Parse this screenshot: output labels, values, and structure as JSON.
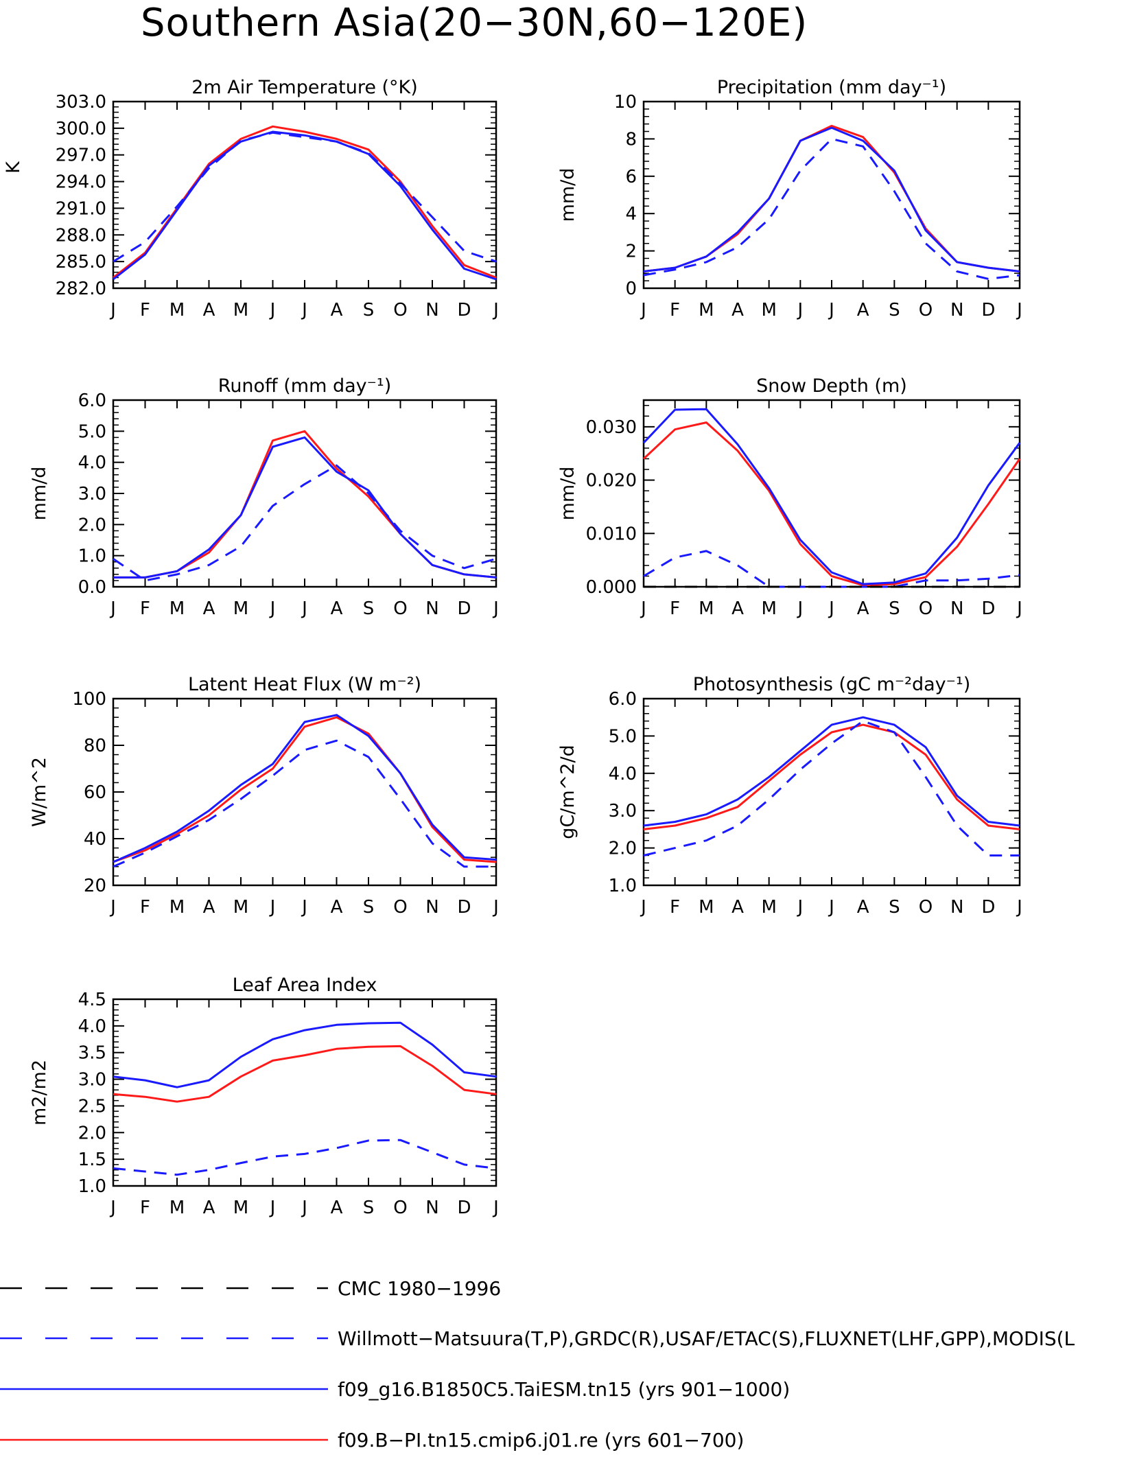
{
  "title": "Southern Asia(20−30N,60−120E)",
  "months": [
    "J",
    "F",
    "M",
    "A",
    "M",
    "J",
    "J",
    "A",
    "S",
    "O",
    "N",
    "D",
    "J"
  ],
  "colors": {
    "obs_cmc": "#000000",
    "obs": "#1a1aff",
    "taiesm": "#1a1aff",
    "cmip6": "#ff1a1a"
  },
  "legend": [
    {
      "label": "CMC 1980−1996",
      "color": "#000000",
      "style": "dashed"
    },
    {
      "label": "Willmott−Matsuura(T,P),GRDC(R),USAF/ETAC(S),FLUXNET(LHF,GPP),MODIS(L",
      "color": "#1a1aff",
      "style": "dashed"
    },
    {
      "label": "f09_g16.B1850C5.TaiESM.tn15 (yrs 901−1000)",
      "color": "#1a1aff",
      "style": "solid"
    },
    {
      "label": "f09.B−PI.tn15.cmip6.j01.re (yrs 601−700)",
      "color": "#ff1a1a",
      "style": "solid"
    }
  ],
  "chart_data": [
    {
      "type": "line",
      "title": "2m Air Temperature (°K)",
      "ylabel": "K",
      "ylim": [
        282.0,
        303.0
      ],
      "yticks": [
        "282.0",
        "285.0",
        "288.0",
        "291.0",
        "294.0",
        "297.0",
        "300.0",
        "303.0"
      ],
      "series": [
        {
          "name": "f09.B−PI.tn15.cmip6.j01.re (yrs 601−700)",
          "color": "#ff1a1a",
          "style": "solid",
          "values": [
            283.2,
            286.0,
            291.0,
            296.0,
            298.8,
            300.2,
            299.6,
            298.8,
            297.6,
            294.0,
            289.0,
            284.6,
            283.2
          ]
        },
        {
          "name": "f09_g16.B1850C5.TaiESM.tn15 (yrs 901−1000)",
          "color": "#1a1aff",
          "style": "solid",
          "values": [
            283.0,
            285.8,
            290.8,
            295.8,
            298.5,
            299.6,
            299.2,
            298.5,
            297.1,
            293.5,
            288.6,
            284.2,
            283.0
          ]
        },
        {
          "name": "Willmott−Matsuura(T,P),GRDC(R),USAF/ETAC(S),FLUXNET(LHF,GPP),MODIS(L",
          "color": "#1a1aff",
          "style": "dashed",
          "values": [
            285.0,
            287.2,
            291.2,
            295.5,
            298.6,
            299.5,
            299.0,
            298.5,
            297.2,
            293.8,
            290.0,
            286.2,
            285.0
          ]
        }
      ]
    },
    {
      "type": "line",
      "title": "Precipitation (mm day⁻¹)",
      "ylabel": "mm/d",
      "ylim": [
        0,
        10
      ],
      "yticks": [
        "0",
        "2",
        "4",
        "6",
        "8",
        "10"
      ],
      "series": [
        {
          "name": "f09.B−PI.tn15.cmip6.j01.re (yrs 601−700)",
          "color": "#ff1a1a",
          "style": "solid",
          "values": [
            0.9,
            1.1,
            1.7,
            2.9,
            4.8,
            7.9,
            8.7,
            8.1,
            6.2,
            3.2,
            1.4,
            1.1,
            0.9
          ]
        },
        {
          "name": "f09_g16.B1850C5.TaiESM.tn15 (yrs 901−1000)",
          "color": "#1a1aff",
          "style": "solid",
          "values": [
            0.9,
            1.1,
            1.7,
            3.0,
            4.8,
            7.9,
            8.6,
            7.9,
            6.3,
            3.1,
            1.4,
            1.1,
            0.9
          ]
        },
        {
          "name": "Willmott−Matsuura(T,P),GRDC(R),USAF/ETAC(S),FLUXNET(LHF,GPP),MODIS(L",
          "color": "#1a1aff",
          "style": "dashed",
          "values": [
            0.7,
            1.0,
            1.4,
            2.2,
            3.7,
            6.3,
            8.0,
            7.6,
            5.2,
            2.4,
            0.9,
            0.5,
            0.7
          ]
        }
      ]
    },
    {
      "type": "line",
      "title": "Runoff (mm day⁻¹)",
      "ylabel": "mm/d",
      "ylim": [
        0.0,
        6.0
      ],
      "yticks": [
        "0.0",
        "1.0",
        "2.0",
        "3.0",
        "4.0",
        "5.0",
        "6.0"
      ],
      "series": [
        {
          "name": "f09.B−PI.tn15.cmip6.j01.re (yrs 601−700)",
          "color": "#ff1a1a",
          "style": "solid",
          "values": [
            0.3,
            0.3,
            0.5,
            1.1,
            2.3,
            4.7,
            5.0,
            3.8,
            2.9,
            1.7,
            0.7,
            0.4,
            0.3
          ]
        },
        {
          "name": "f09_g16.B1850C5.TaiESM.tn15 (yrs 901−1000)",
          "color": "#1a1aff",
          "style": "solid",
          "values": [
            0.3,
            0.3,
            0.5,
            1.2,
            2.3,
            4.5,
            4.8,
            3.7,
            3.1,
            1.7,
            0.7,
            0.4,
            0.3
          ]
        },
        {
          "name": "Willmott−Matsuura(T,P),GRDC(R),USAF/ETAC(S),FLUXNET(LHF,GPP),MODIS(L",
          "color": "#1a1aff",
          "style": "dashed",
          "values": [
            0.9,
            0.2,
            0.4,
            0.7,
            1.3,
            2.6,
            3.3,
            3.9,
            3.0,
            1.8,
            1.0,
            0.6,
            0.9
          ]
        }
      ]
    },
    {
      "type": "line",
      "title": "Snow Depth (m)",
      "ylabel": "mm/d",
      "ylim": [
        0.0,
        0.035
      ],
      "yticks": [
        "0.000",
        "0.010",
        "0.020",
        "0.030"
      ],
      "ytick_values": [
        0.0,
        0.01,
        0.02,
        0.03
      ],
      "series": [
        {
          "name": "f09.B−PI.tn15.cmip6.j01.re (yrs 601−700)",
          "color": "#ff1a1a",
          "style": "solid",
          "values": [
            0.024,
            0.0295,
            0.0308,
            0.0255,
            0.018,
            0.008,
            0.002,
            0.0003,
            0.0005,
            0.0018,
            0.0075,
            0.0155,
            0.024
          ]
        },
        {
          "name": "f09_g16.B1850C5.TaiESM.tn15 (yrs 901−1000)",
          "color": "#1a1aff",
          "style": "solid",
          "values": [
            0.027,
            0.0332,
            0.0333,
            0.0267,
            0.0185,
            0.0088,
            0.0027,
            0.0005,
            0.0008,
            0.0025,
            0.0092,
            0.019,
            0.027
          ]
        },
        {
          "name": "Willmott−Matsuura(T,P),GRDC(R),USAF/ETAC(S),FLUXNET(LHF,GPP),MODIS(L",
          "color": "#1a1aff",
          "style": "dashed",
          "values": [
            0.002,
            0.0055,
            0.0067,
            0.004,
            0.0,
            0.0,
            0.0,
            0.0,
            0.0,
            0.0012,
            0.0012,
            0.0015,
            0.0022
          ]
        },
        {
          "name": "CMC 1980−1996",
          "color": "#000000",
          "style": "dashed",
          "values": [
            0,
            0,
            0,
            0,
            0,
            0,
            0,
            0,
            0,
            0,
            0,
            0,
            0
          ]
        }
      ]
    },
    {
      "type": "line",
      "title": "Latent Heat Flux (W m⁻²)",
      "ylabel": "W/m^2",
      "ylim": [
        20,
        100
      ],
      "yticks": [
        "20",
        "40",
        "60",
        "80",
        "100"
      ],
      "series": [
        {
          "name": "f09.B−PI.tn15.cmip6.j01.re (yrs 601−700)",
          "color": "#ff1a1a",
          "style": "solid",
          "values": [
            30,
            35,
            42,
            50,
            61,
            70,
            88,
            92,
            85,
            68,
            45,
            31,
            30
          ]
        },
        {
          "name": "f09_g16.B1850C5.TaiESM.tn15 (yrs 901−1000)",
          "color": "#1a1aff",
          "style": "solid",
          "values": [
            30,
            36,
            43,
            52,
            63,
            72,
            90,
            93,
            84,
            68,
            46,
            32,
            31
          ]
        },
        {
          "name": "Willmott−Matsuura(T,P),GRDC(R),USAF/ETAC(S),FLUXNET(LHF,GPP),MODIS(L",
          "color": "#1a1aff",
          "style": "dashed",
          "values": [
            28,
            34,
            41,
            48,
            57,
            67,
            78,
            82,
            75,
            57,
            38,
            28,
            28
          ]
        }
      ]
    },
    {
      "type": "line",
      "title": "Photosynthesis (gC m⁻²day⁻¹)",
      "ylabel": "gC/m^2/d",
      "ylim": [
        1.0,
        6.0
      ],
      "yticks": [
        "1.0",
        "2.0",
        "3.0",
        "4.0",
        "5.0",
        "6.0"
      ],
      "series": [
        {
          "name": "f09.B−PI.tn15.cmip6.j01.re (yrs 601−700)",
          "color": "#ff1a1a",
          "style": "solid",
          "values": [
            2.5,
            2.6,
            2.8,
            3.1,
            3.8,
            4.5,
            5.1,
            5.3,
            5.1,
            4.5,
            3.3,
            2.6,
            2.5
          ]
        },
        {
          "name": "f09_g16.B1850C5.TaiESM.tn15 (yrs 901−1000)",
          "color": "#1a1aff",
          "style": "solid",
          "values": [
            2.6,
            2.7,
            2.9,
            3.3,
            3.9,
            4.6,
            5.3,
            5.5,
            5.3,
            4.7,
            3.4,
            2.7,
            2.6
          ]
        },
        {
          "name": "Willmott−Matsuura(T,P),GRDC(R),USAF/ETAC(S),FLUXNET(LHF,GPP),MODIS(L",
          "color": "#1a1aff",
          "style": "dashed",
          "values": [
            1.8,
            2.0,
            2.2,
            2.6,
            3.3,
            4.1,
            4.8,
            5.4,
            5.1,
            3.9,
            2.6,
            1.8,
            1.8
          ]
        }
      ]
    },
    {
      "type": "line",
      "title": "Leaf Area Index",
      "ylabel": "m2/m2",
      "ylim": [
        1.0,
        4.5
      ],
      "yticks": [
        "1.0",
        "1.5",
        "2.0",
        "2.5",
        "3.0",
        "3.5",
        "4.0",
        "4.5"
      ],
      "series": [
        {
          "name": "f09.B−PI.tn15.cmip6.j01.re (yrs 601−700)",
          "color": "#ff1a1a",
          "style": "solid",
          "values": [
            2.72,
            2.67,
            2.58,
            2.67,
            3.05,
            3.35,
            3.45,
            3.57,
            3.61,
            3.62,
            3.25,
            2.8,
            2.72
          ]
        },
        {
          "name": "f09_g16.B1850C5.TaiESM.tn15 (yrs 901−1000)",
          "color": "#1a1aff",
          "style": "solid",
          "values": [
            3.05,
            2.98,
            2.85,
            2.98,
            3.42,
            3.75,
            3.92,
            4.02,
            4.05,
            4.06,
            3.65,
            3.13,
            3.05
          ]
        },
        {
          "name": "Willmott−Matsuura(T,P),GRDC(R),USAF/ETAC(S),FLUXNET(LHF,GPP),MODIS(L",
          "color": "#1a1aff",
          "style": "dashed",
          "values": [
            1.33,
            1.27,
            1.21,
            1.3,
            1.43,
            1.55,
            1.6,
            1.71,
            1.85,
            1.86,
            1.63,
            1.4,
            1.33
          ]
        }
      ]
    }
  ]
}
